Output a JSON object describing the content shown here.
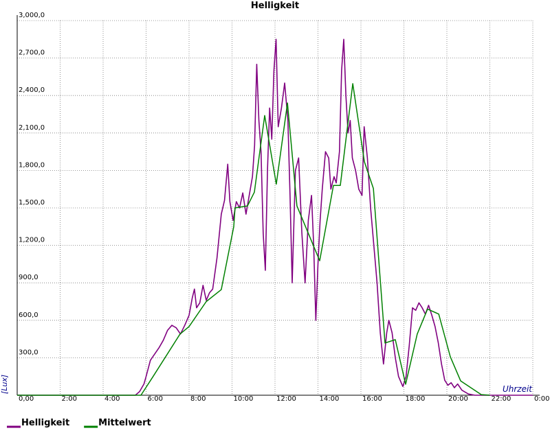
{
  "chart_data": {
    "type": "line",
    "title": "Helligkeit",
    "y_label": "[Lux]",
    "x_label": "Uhrzeit",
    "xlim": [
      0,
      24
    ],
    "ylim": [
      0,
      3000
    ],
    "xticks": [
      {
        "value": 0,
        "label": "0,00"
      },
      {
        "value": 2,
        "label": "2:00"
      },
      {
        "value": 4,
        "label": "4:00"
      },
      {
        "value": 6,
        "label": "6:00"
      },
      {
        "value": 8,
        "label": "8:00"
      },
      {
        "value": 10,
        "label": "10:00"
      },
      {
        "value": 12,
        "label": "12:00"
      },
      {
        "value": 14,
        "label": "14:00"
      },
      {
        "value": 16,
        "label": "16:00"
      },
      {
        "value": 18,
        "label": "18:00"
      },
      {
        "value": 20,
        "label": "20:00"
      },
      {
        "value": 22,
        "label": "22:00"
      },
      {
        "value": 24,
        "label": "0:00"
      }
    ],
    "yticks": [
      {
        "value": 300,
        "label": "300,0"
      },
      {
        "value": 600,
        "label": "600,0"
      },
      {
        "value": 900,
        "label": "900,0"
      },
      {
        "value": 1200,
        "label": "1,200,0"
      },
      {
        "value": 1500,
        "label": "1,500,0"
      },
      {
        "value": 1800,
        "label": "1,800,0"
      },
      {
        "value": 2100,
        "label": "2,100,0"
      },
      {
        "value": 2400,
        "label": "2,400,0"
      },
      {
        "value": 2700,
        "label": "2,700,0"
      },
      {
        "value": 3000,
        "label": "3,000,0"
      }
    ],
    "grid": true,
    "series": [
      {
        "name": "Helligkeit",
        "color": "#800080",
        "x": [
          0,
          5.5,
          5.7,
          5.9,
          6.0,
          6.2,
          6.4,
          6.6,
          6.8,
          7.0,
          7.2,
          7.4,
          7.6,
          7.8,
          8.0,
          8.15,
          8.25,
          8.35,
          8.5,
          8.65,
          8.8,
          8.95,
          9.1,
          9.3,
          9.5,
          9.65,
          9.8,
          9.9,
          10.05,
          10.2,
          10.35,
          10.5,
          10.65,
          10.8,
          10.95,
          11.05,
          11.15,
          11.25,
          11.35,
          11.45,
          11.55,
          11.65,
          11.75,
          11.85,
          11.95,
          12.05,
          12.15,
          12.3,
          12.45,
          12.6,
          12.7,
          12.8,
          12.95,
          13.1,
          13.25,
          13.4,
          13.55,
          13.7,
          13.8,
          13.9,
          14.0,
          14.1,
          14.2,
          14.35,
          14.5,
          14.6,
          14.75,
          14.85,
          15.0,
          15.1,
          15.2,
          15.3,
          15.4,
          15.5,
          15.6,
          15.75,
          15.9,
          16.05,
          16.15,
          16.3,
          16.45,
          16.6,
          16.75,
          16.9,
          17.05,
          17.2,
          17.3,
          17.45,
          17.6,
          17.75,
          17.95,
          18.1,
          18.25,
          18.4,
          18.55,
          18.7,
          18.85,
          19.0,
          19.15,
          19.3,
          19.45,
          19.6,
          19.75,
          19.9,
          20.05,
          20.2,
          20.35,
          20.5,
          20.7,
          21.0,
          21.3,
          24
        ],
        "values": [
          0,
          0,
          30,
          90,
          150,
          280,
          330,
          380,
          440,
          520,
          560,
          540,
          490,
          560,
          640,
          780,
          850,
          700,
          740,
          880,
          760,
          820,
          850,
          1100,
          1450,
          1560,
          1850,
          1550,
          1400,
          1550,
          1500,
          1620,
          1450,
          1600,
          1750,
          2000,
          2650,
          2200,
          1950,
          1300,
          1000,
          1800,
          2300,
          2050,
          2600,
          2850,
          2150,
          2300,
          2500,
          2200,
          1600,
          900,
          1800,
          1900,
          1300,
          900,
          1400,
          1600,
          1200,
          600,
          1050,
          1400,
          1650,
          1950,
          1900,
          1650,
          1750,
          1700,
          1950,
          2600,
          2850,
          2400,
          2100,
          2200,
          1900,
          1800,
          1650,
          1600,
          2150,
          1900,
          1500,
          1200,
          900,
          500,
          250,
          500,
          600,
          500,
          300,
          150,
          70,
          150,
          400,
          700,
          680,
          740,
          700,
          650,
          720,
          640,
          550,
          420,
          250,
          120,
          80,
          100,
          60,
          90,
          40,
          10,
          0,
          0
        ]
      },
      {
        "name": "Mittelwert",
        "color": "#008000",
        "x": [
          0,
          5.76,
          6.3,
          7.58,
          8.0,
          8.8,
          9.5,
          10.08,
          10.14,
          10.72,
          11.04,
          11.52,
          12.06,
          12.58,
          13.02,
          14.08,
          14.72,
          15.04,
          15.62,
          16.16,
          16.58,
          17.12,
          17.6,
          18.08,
          18.62,
          19.1,
          19.62,
          20.16,
          20.64,
          21.6,
          22
        ],
        "values": [
          0,
          0,
          143,
          490,
          550,
          750,
          846,
          1350,
          1500,
          1516,
          1626,
          2240,
          1690,
          2340,
          1516,
          1077,
          1680,
          1680,
          2495,
          1870,
          1655,
          418,
          445,
          88,
          490,
          690,
          650,
          308,
          115,
          5,
          0
        ]
      }
    ]
  }
}
